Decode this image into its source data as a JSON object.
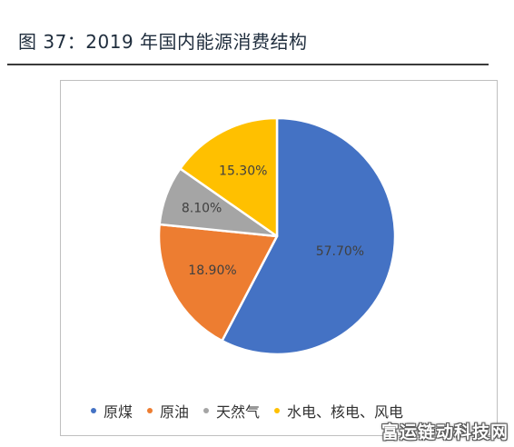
{
  "header": {
    "figure_title": "图 37：2019 年国内能源消费结构"
  },
  "chart_data": {
    "type": "pie",
    "title": "",
    "categories": [
      "原煤",
      "原油",
      "天然气",
      "水电、核电、风电"
    ],
    "values": [
      57.7,
      18.9,
      8.1,
      15.3
    ],
    "data_labels": [
      "57.70%",
      "18.90%",
      "8.10%",
      "15.30%"
    ],
    "colors": [
      "#4472C4",
      "#ED7D31",
      "#A5A5A5",
      "#FFC000"
    ],
    "start_angle_deg": 0,
    "direction": "clockwise",
    "legend_position": "bottom"
  },
  "watermark": {
    "text": "富运链动科技网"
  }
}
